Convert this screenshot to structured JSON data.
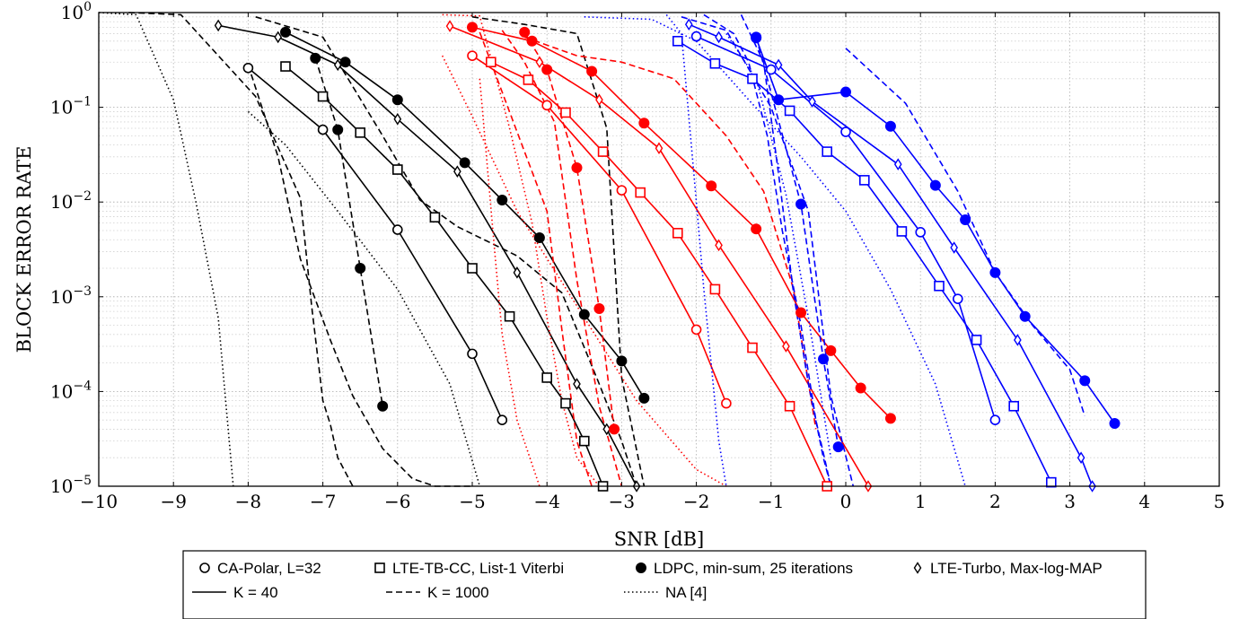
{
  "chart_data": {
    "type": "line",
    "title": "",
    "xlabel": "SNR [dB]",
    "ylabel": "BLOCK ERROR RATE",
    "xlim": [
      -10,
      5
    ],
    "ylim": [
      1e-05,
      1
    ],
    "yscale": "log",
    "grid": true,
    "legend_position": "bottom",
    "x_ticks": [
      "−10",
      "−9",
      "−8",
      "−7",
      "−6",
      "−5",
      "−4",
      "−3",
      "−2",
      "−1",
      "0",
      "1",
      "2",
      "3",
      "4",
      "5"
    ],
    "y_ticks": [
      {
        "base": "10",
        "exp": "0"
      },
      {
        "base": "10",
        "exp": "−1"
      },
      {
        "base": "10",
        "exp": "−2"
      },
      {
        "base": "10",
        "exp": "−3"
      },
      {
        "base": "10",
        "exp": "−4"
      },
      {
        "base": "10",
        "exp": "−5"
      }
    ],
    "colors": {
      "black": "#000000",
      "red": "#ff0000",
      "blue": "#0000ff"
    },
    "legend": [
      {
        "label": "CA-Polar, L=32",
        "marker": "circle-open",
        "dash": "none"
      },
      {
        "label": "LTE-TB-CC, List-1 Viterbi",
        "marker": "square-open",
        "dash": "none"
      },
      {
        "label": "LDPC, min-sum, 25 iterations",
        "marker": "circle-filled",
        "dash": "none"
      },
      {
        "label": "LTE-Turbo, Max-log-MAP",
        "marker": "diamond-open",
        "dash": "none"
      },
      {
        "label": "K = 40",
        "marker": "none",
        "dash": "solid"
      },
      {
        "label": "K = 1000",
        "marker": "none",
        "dash": "dashed"
      },
      {
        "label": "NA [4]",
        "marker": "none",
        "dash": "dotted"
      }
    ],
    "series": [
      {
        "color": "black",
        "dash": "solid",
        "marker": "circle-open",
        "x": [
          -8.0,
          -7.0,
          -6.0,
          -5.0,
          -4.6
        ],
        "y": [
          0.26,
          0.058,
          0.0051,
          0.00025,
          5e-05
        ]
      },
      {
        "color": "black",
        "dash": "solid",
        "marker": "square-open",
        "x": [
          -7.5,
          -7.0,
          -6.5,
          -6.0,
          -5.5,
          -5.0,
          -4.5,
          -4.0,
          -3.75,
          -3.5,
          -3.25
        ],
        "y": [
          0.27,
          0.13,
          0.054,
          0.022,
          0.0069,
          0.002,
          0.00062,
          0.00014,
          7.5e-05,
          3e-05,
          1e-05
        ]
      },
      {
        "color": "black",
        "dash": "solid",
        "marker": "circle-filled",
        "x": [
          -7.5,
          -6.7,
          -6.0,
          -5.1,
          -4.6,
          -4.1,
          -3.5,
          -3.0,
          -2.7
        ],
        "y": [
          0.62,
          0.3,
          0.12,
          0.026,
          0.0105,
          0.0042,
          0.00065,
          0.00021,
          8.5e-05
        ]
      },
      {
        "color": "black",
        "dash": "solid",
        "marker": "diamond-open",
        "x": [
          -8.4,
          -7.6,
          -6.8,
          -6.0,
          -5.2,
          -4.4,
          -3.6,
          -3.2,
          -2.8
        ],
        "y": [
          0.73,
          0.55,
          0.28,
          0.075,
          0.021,
          0.0018,
          0.00012,
          4e-05,
          1e-05
        ]
      },
      {
        "color": "black",
        "dash": "dashed",
        "marker": "circle-filled",
        "x": [
          -7.1,
          -6.8,
          -6.5,
          -6.2
        ],
        "y": [
          0.33,
          0.058,
          0.002,
          7e-05
        ]
      },
      {
        "color": "black",
        "dash": "dashed",
        "marker": "none",
        "x": [
          -9.6,
          -8.9,
          -7.9,
          -7.3,
          -7.15,
          -7.0,
          -6.9,
          -6.8,
          -6.6
        ],
        "y": [
          1.0,
          0.95,
          0.13,
          0.011,
          0.0008,
          8e-05,
          4.5e-05,
          2e-05,
          1e-05
        ]
      },
      {
        "color": "black",
        "dash": "dashed",
        "marker": "none",
        "x": [
          -8.0,
          -7.6,
          -7.3,
          -6.9,
          -6.6,
          -6.2,
          -5.8,
          -5.5,
          -5.0
        ],
        "y": [
          0.28,
          0.03,
          0.0025,
          0.00035,
          9e-05,
          2.5e-05,
          1.2e-05,
          1e-05,
          1e-05
        ]
      },
      {
        "color": "black",
        "dash": "dashed",
        "marker": "none",
        "x": [
          -7.9,
          -7.0,
          -6.2,
          -5.7,
          -5.2,
          -4.4,
          -3.8,
          -3.3,
          -3.0,
          -2.8
        ],
        "y": [
          0.9,
          0.55,
          0.05,
          0.0105,
          0.0055,
          0.0027,
          0.0011,
          0.00012,
          3e-05,
          1e-05
        ]
      },
      {
        "color": "black",
        "dash": "dashed",
        "marker": "none",
        "x": [
          -5.0,
          -4.3,
          -3.6,
          -3.2,
          -3.0,
          -2.7
        ],
        "y": [
          0.9,
          0.75,
          0.6,
          0.06,
          0.00014,
          1e-05
        ]
      },
      {
        "color": "black",
        "dash": "dotted",
        "marker": "none",
        "x": [
          -10.0,
          -9.5,
          -9.0,
          -8.7,
          -8.4,
          -8.2
        ],
        "y": [
          1.0,
          0.95,
          0.12,
          0.01,
          0.0006,
          1e-05
        ]
      },
      {
        "color": "black",
        "dash": "dotted",
        "marker": "none",
        "x": [
          -8.0,
          -7.5,
          -6.8,
          -6.0,
          -5.3,
          -4.9
        ],
        "y": [
          0.09,
          0.04,
          0.008,
          0.0012,
          0.00012,
          1e-05
        ]
      },
      {
        "color": "red",
        "dash": "solid",
        "marker": "circle-open",
        "x": [
          -5.0,
          -4.0,
          -3.0,
          -2.0,
          -1.6
        ],
        "y": [
          0.35,
          0.105,
          0.0133,
          0.00045,
          7.5e-05
        ]
      },
      {
        "color": "red",
        "dash": "solid",
        "marker": "square-open",
        "x": [
          -4.75,
          -4.25,
          -3.75,
          -3.25,
          -2.75,
          -2.25,
          -1.75,
          -1.25,
          -0.75,
          -0.25
        ],
        "y": [
          0.3,
          0.195,
          0.088,
          0.034,
          0.0126,
          0.0047,
          0.0012,
          0.00029,
          7e-05,
          1e-05
        ]
      },
      {
        "color": "red",
        "dash": "solid",
        "marker": "circle-filled",
        "x": [
          -5.0,
          -4.2,
          -3.4,
          -2.7,
          -1.8,
          -1.2,
          -0.6,
          -0.2,
          0.2,
          0.6
        ],
        "y": [
          0.7,
          0.5,
          0.24,
          0.068,
          0.0148,
          0.0052,
          0.00068,
          0.00027,
          0.000109,
          5.2e-05
        ]
      },
      {
        "color": "red",
        "dash": "solid",
        "marker": "diamond-open",
        "x": [
          -5.3,
          -4.1,
          -3.3,
          -2.5,
          -1.7,
          -0.8,
          0.3
        ],
        "y": [
          0.72,
          0.3,
          0.12,
          0.037,
          0.0035,
          0.0003,
          1e-05
        ]
      },
      {
        "color": "red",
        "dash": "dashed",
        "marker": "circle-filled",
        "x": [
          -4.3,
          -4.0,
          -3.6,
          -3.3,
          -3.1
        ],
        "y": [
          0.62,
          0.25,
          0.023,
          0.00075,
          4e-05
        ]
      },
      {
        "color": "red",
        "dash": "dashed",
        "marker": "none",
        "x": [
          -4.9,
          -4.4,
          -4.0,
          -3.8,
          -3.6,
          -3.4
        ],
        "y": [
          0.62,
          0.055,
          0.008,
          0.00045,
          3e-05,
          1e-05
        ]
      },
      {
        "color": "red",
        "dash": "dashed",
        "marker": "none",
        "x": [
          -4.6,
          -4.3,
          -3.9,
          -3.6,
          -3.3,
          -3.0
        ],
        "y": [
          0.65,
          0.3,
          0.07,
          0.0015,
          7e-05,
          1e-05
        ]
      },
      {
        "color": "red",
        "dash": "dashed",
        "marker": "none",
        "x": [
          -4.3,
          -3.6,
          -3.0,
          -2.3,
          -1.6,
          -1.1,
          -0.7,
          -0.4
        ],
        "y": [
          0.55,
          0.35,
          0.3,
          0.2,
          0.05,
          0.013,
          0.0012,
          4e-05
        ]
      },
      {
        "color": "red",
        "dash": "dotted",
        "marker": "none",
        "x": [
          -5.4,
          -4.9,
          -4.5,
          -4.2,
          -4.0,
          -3.8,
          -3.6,
          -3.3
        ],
        "y": [
          0.95,
          0.92,
          0.06,
          0.006,
          0.0006,
          8e-05,
          2e-05,
          1e-05
        ]
      },
      {
        "color": "red",
        "dash": "dotted",
        "marker": "none",
        "x": [
          -4.9,
          -4.7,
          -4.6,
          -4.4,
          -4.1
        ],
        "y": [
          0.2,
          0.003,
          0.0004,
          5e-05,
          1e-05
        ]
      },
      {
        "color": "red",
        "dash": "dotted",
        "marker": "none",
        "x": [
          -5.4,
          -5.0,
          -4.4,
          -3.6,
          -2.8,
          -2.0,
          -1.6
        ],
        "y": [
          0.35,
          0.08,
          0.008,
          0.0008,
          8e-05,
          1.5e-05,
          1e-05
        ]
      },
      {
        "color": "blue",
        "dash": "solid",
        "marker": "circle-open",
        "x": [
          -2.0,
          -1.0,
          0.0,
          1.0,
          1.5,
          2.0
        ],
        "y": [
          0.56,
          0.25,
          0.055,
          0.0048,
          0.00095,
          5e-05
        ]
      },
      {
        "color": "blue",
        "dash": "solid",
        "marker": "square-open",
        "x": [
          -2.25,
          -1.75,
          -1.25,
          -0.75,
          -0.25,
          0.25,
          0.75,
          1.25,
          1.75,
          2.25,
          2.75
        ],
        "y": [
          0.5,
          0.29,
          0.2,
          0.092,
          0.034,
          0.017,
          0.0049,
          0.0013,
          0.00035,
          7e-05,
          1.1e-05
        ]
      },
      {
        "color": "blue",
        "dash": "solid",
        "marker": "circle-filled",
        "x": [
          -1.2,
          -0.9,
          0.0,
          0.6,
          1.2,
          1.6,
          2.0,
          2.4,
          3.2,
          3.6
        ],
        "y": [
          0.54,
          0.12,
          0.145,
          0.063,
          0.015,
          0.0065,
          0.0018,
          0.00062,
          0.00013,
          4.6e-05
        ]
      },
      {
        "color": "blue",
        "dash": "solid",
        "marker": "diamond-open",
        "x": [
          -2.1,
          -1.7,
          -0.9,
          -0.45,
          0.7,
          1.45,
          2.3,
          3.15,
          3.3
        ],
        "y": [
          0.75,
          0.55,
          0.28,
          0.115,
          0.025,
          0.0033,
          0.00035,
          2e-05,
          1e-05
        ]
      },
      {
        "color": "blue",
        "dash": "dashed",
        "marker": "circle-filled",
        "x": [
          -1.2,
          -0.6,
          -0.3,
          -0.1
        ],
        "y": [
          0.55,
          0.0095,
          0.00022,
          2.6e-05
        ]
      },
      {
        "color": "blue",
        "dash": "dashed",
        "marker": "none",
        "x": [
          -1.9,
          -1.5,
          -1.3,
          -1.05,
          -0.85,
          -0.6,
          -0.4,
          -0.2
        ],
        "y": [
          0.95,
          0.6,
          0.3,
          0.05,
          0.005,
          0.0005,
          5e-05,
          1e-05
        ]
      },
      {
        "color": "blue",
        "dash": "dashed",
        "marker": "none",
        "x": [
          -1.4,
          -1.1,
          -0.9,
          -0.7,
          -0.5,
          -0.3,
          -0.2
        ],
        "y": [
          0.95,
          0.3,
          0.02,
          0.0011,
          0.00012,
          2e-05,
          1e-05
        ]
      },
      {
        "color": "blue",
        "dash": "dashed",
        "marker": "none",
        "x": [
          -2.2,
          -1.6,
          -1.0,
          -0.5,
          -0.2,
          0.1
        ],
        "y": [
          0.9,
          0.65,
          0.1,
          0.008,
          9e-05,
          1e-05
        ]
      },
      {
        "color": "blue",
        "dash": "dashed",
        "marker": "none",
        "x": [
          0.0,
          0.8,
          1.5,
          2.0,
          2.5,
          3.0,
          3.2
        ],
        "y": [
          0.42,
          0.11,
          0.013,
          0.0018,
          0.0005,
          0.00017,
          5.5e-05
        ]
      },
      {
        "color": "blue",
        "dash": "dotted",
        "marker": "none",
        "x": [
          -2.4,
          -2.2,
          -2.0,
          -1.9,
          -1.7,
          -1.6
        ],
        "y": [
          0.95,
          0.6,
          0.01,
          0.0012,
          3e-05,
          1e-05
        ]
      },
      {
        "color": "blue",
        "dash": "dotted",
        "marker": "none",
        "x": [
          -1.6,
          -1.2,
          -0.8,
          -0.5,
          -0.2
        ],
        "y": [
          0.6,
          0.2,
          0.012,
          0.0006,
          2e-05
        ]
      },
      {
        "color": "blue",
        "dash": "dotted",
        "marker": "none",
        "x": [
          -3.5,
          -2.6,
          -2.0,
          -1.3,
          -0.6,
          0.0,
          0.6,
          1.2,
          1.6
        ],
        "y": [
          0.9,
          0.85,
          0.5,
          0.12,
          0.03,
          0.008,
          0.0012,
          0.00012,
          1e-05
        ]
      }
    ]
  }
}
